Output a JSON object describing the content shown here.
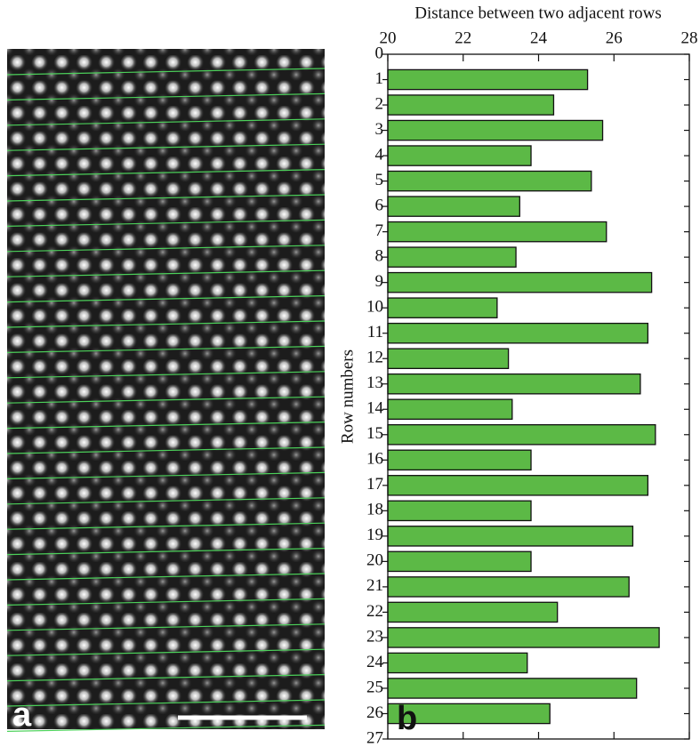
{
  "panels": {
    "a": "a",
    "b": "b"
  },
  "chart_data": {
    "type": "bar",
    "orientation": "horizontal",
    "title": "Distance between two adjacent rows",
    "y_label": "Row numbers",
    "y": [
      1,
      2,
      3,
      4,
      5,
      6,
      7,
      8,
      9,
      10,
      11,
      12,
      13,
      14,
      15,
      16,
      17,
      18,
      19,
      20,
      21,
      22,
      23,
      24,
      25,
      26
    ],
    "values": [
      25.3,
      24.4,
      25.7,
      23.8,
      25.4,
      23.5,
      25.8,
      23.4,
      27.0,
      22.9,
      26.9,
      23.2,
      26.7,
      23.3,
      27.1,
      23.8,
      26.9,
      23.8,
      26.5,
      23.8,
      26.4,
      24.5,
      27.2,
      23.7,
      26.6,
      24.3
    ],
    "color": "#5cb946",
    "xlim": [
      20,
      28
    ],
    "xticks": [
      20,
      22,
      24,
      26,
      28
    ],
    "ylim": [
      0,
      27
    ],
    "yticks": [
      0,
      1,
      2,
      3,
      4,
      5,
      6,
      7,
      8,
      9,
      10,
      11,
      12,
      13,
      14,
      15,
      16,
      17,
      18,
      19,
      20,
      21,
      22,
      23,
      24,
      25,
      26,
      27
    ],
    "y_inverted": true,
    "x_axis_top": true
  }
}
